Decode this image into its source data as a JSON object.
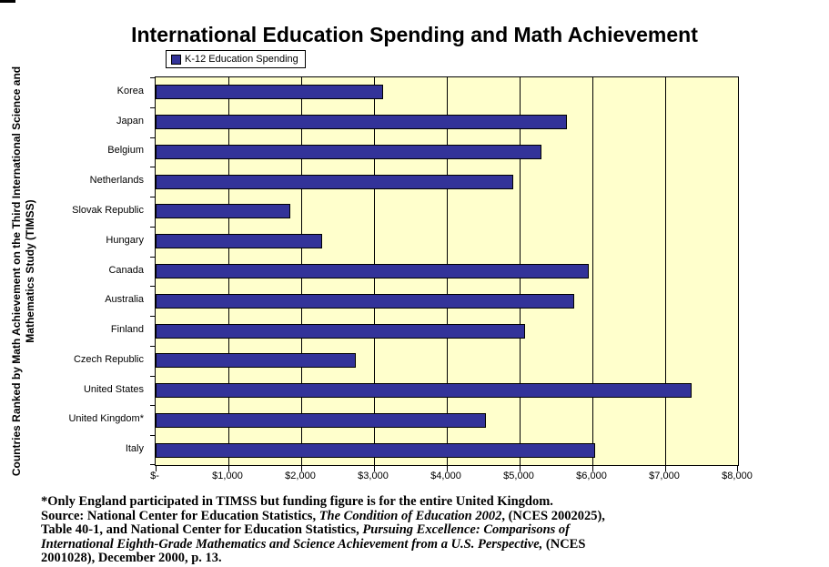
{
  "chart_data": {
    "type": "bar",
    "orientation": "horizontal",
    "title": "International Education Spending and Math Achievement",
    "series_name": "K-12 Education Spending",
    "categories": [
      "Korea",
      "Japan",
      "Belgium",
      "Netherlands",
      "Slovak Republic",
      "Hungary",
      "Canada",
      "Australia",
      "Finland",
      "Czech Republic",
      "United States",
      "United Kingdom*",
      "Italy"
    ],
    "values": [
      3125,
      5650,
      5300,
      4910,
      1850,
      2290,
      5950,
      5750,
      5075,
      2750,
      7360,
      4540,
      6040
    ],
    "xlim": [
      0,
      8000
    ],
    "x_tick_interval": 1000,
    "x_tick_labels": [
      "$-",
      "$1,000",
      "$2,000",
      "$3,000",
      "$4,000",
      "$5,000",
      "$6,000",
      "$7,000",
      "$8,000"
    ],
    "ylabel": "Countries Ranked by Math Achievement on the Third International Science and Mathematics Study (TIMSS)",
    "ylabel_lines": [
      "Countries Ranked by Math Achievement on the Third International Science and",
      "Mathematics Study (TIMSS)"
    ],
    "grid": true,
    "legend_position": "top-left",
    "colors": {
      "bar": "#333399",
      "bar_border": "#000000",
      "plot_bg": "#FFFFCC",
      "gridline": "#000000",
      "background": "#FFFFFF"
    }
  },
  "footnote": {
    "lines": [
      [
        {
          "t": "*Only England participated in TIMSS but funding figure is for the entire United Kingdom.",
          "i": false
        }
      ],
      [
        {
          "t": "Source: National Center for Education Statistics, ",
          "i": false
        },
        {
          "t": "The Condition of Education 2002",
          "i": true
        },
        {
          "t": ", (NCES 2002025),",
          "i": false
        }
      ],
      [
        {
          "t": "Table 40-1, and National Center for Education Statistics, ",
          "i": false
        },
        {
          "t": "Pursuing Excellence: Comparisons of",
          "i": true
        }
      ],
      [
        {
          "t": "International Eighth-Grade Mathematics and Science Achievement from a U.S. Perspective,",
          "i": true
        },
        {
          "t": " (NCES",
          "i": false
        }
      ],
      [
        {
          "t": "2001028), December 2000, p. 13.",
          "i": false
        }
      ]
    ]
  }
}
